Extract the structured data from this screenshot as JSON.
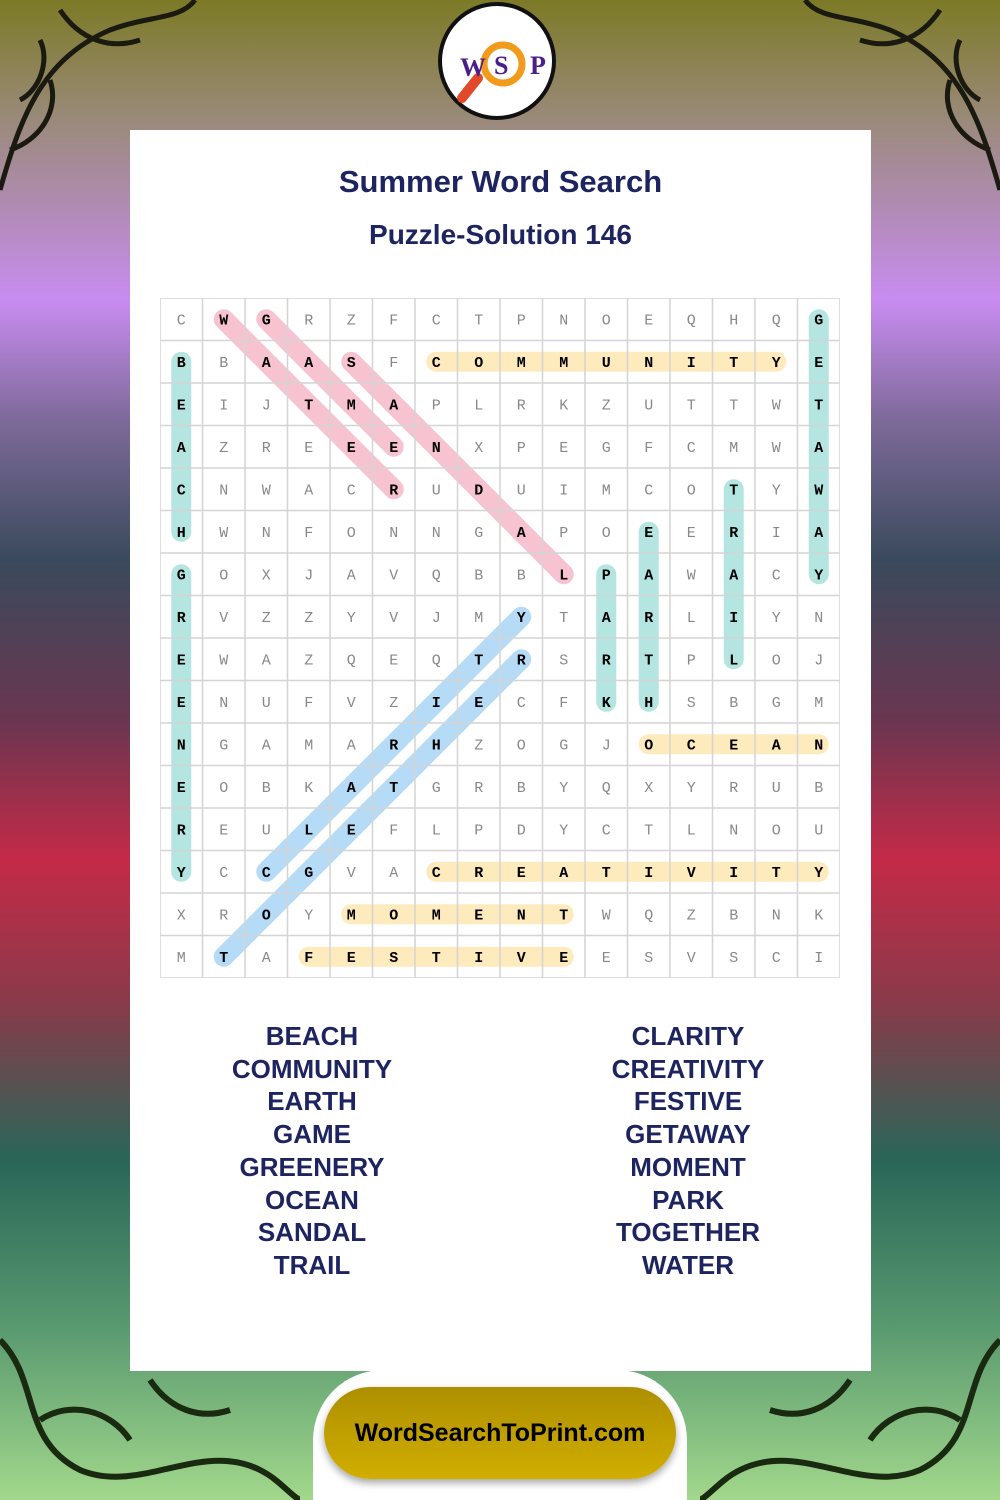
{
  "logo": {
    "letters": [
      "W",
      "S",
      "P"
    ],
    "icon": "magnifying-glass-icon"
  },
  "header": {
    "title": "Summer Word Search",
    "subtitle": "Puzzle-Solution 146"
  },
  "grid": [
    "CWGRZFCTPNOEQHQG",
    "BBAASFCOMMUNITYE",
    "EIJTMAPLRKZUTTWT",
    "AZREEENXPEGFCMWA",
    "CNWACRUDUIMCOTYW",
    "HWNFONNGAPOEERIA",
    "GOXJAVQBBLPAWACY",
    "RVZZYVJMYTARLIYN",
    "EWAZQEQTRSRTPLOJ",
    "ENUFVZIECFKHSBGM",
    "NGAMARHZOGJOCEAN",
    "EOBKATGRBYQXYRUB",
    "REULEFLPDYCTLNOU",
    "YCCGVACREATIVITY",
    "XROYMOMENTWQZBNK",
    "MTAFESTIVEESVSCI"
  ],
  "colors": {
    "pink": "#f7b9c9",
    "teal": "#a9e1dc",
    "yellow": "#fde7b2",
    "blue": "#a9d5f5",
    "title": "#1e2460",
    "button": "#c2a000"
  },
  "solutions": [
    {
      "word": "BEACH",
      "start": [
        1,
        0
      ],
      "end": [
        5,
        0
      ],
      "color": "teal"
    },
    {
      "word": "GREENERY",
      "start": [
        6,
        0
      ],
      "end": [
        13,
        0
      ],
      "color": "teal"
    },
    {
      "word": "GETAWAY",
      "start": [
        0,
        15
      ],
      "end": [
        6,
        15
      ],
      "color": "teal"
    },
    {
      "word": "TRAIL",
      "start": [
        4,
        13
      ],
      "end": [
        8,
        13
      ],
      "color": "teal"
    },
    {
      "word": "EARTH",
      "start": [
        5,
        11
      ],
      "end": [
        9,
        11
      ],
      "color": "teal"
    },
    {
      "word": "PARK",
      "start": [
        6,
        10
      ],
      "end": [
        9,
        10
      ],
      "color": "teal"
    },
    {
      "word": "COMMUNITY",
      "start": [
        1,
        6
      ],
      "end": [
        1,
        14
      ],
      "color": "yellow"
    },
    {
      "word": "OCEAN",
      "start": [
        10,
        11
      ],
      "end": [
        10,
        15
      ],
      "color": "yellow"
    },
    {
      "word": "CREATIVITY",
      "start": [
        13,
        6
      ],
      "end": [
        13,
        15
      ],
      "color": "yellow"
    },
    {
      "word": "MOMENT",
      "start": [
        14,
        4
      ],
      "end": [
        14,
        9
      ],
      "color": "yellow"
    },
    {
      "word": "FESTIVE",
      "start": [
        15,
        3
      ],
      "end": [
        15,
        9
      ],
      "color": "yellow"
    },
    {
      "word": "WATER",
      "start": [
        0,
        1
      ],
      "end": [
        4,
        5
      ],
      "color": "pink"
    },
    {
      "word": "GAME",
      "start": [
        0,
        2
      ],
      "end": [
        3,
        5
      ],
      "color": "pink"
    },
    {
      "word": "SANDAL",
      "start": [
        1,
        4
      ],
      "end": [
        6,
        9
      ],
      "color": "pink"
    },
    {
      "word": "TOGETHER",
      "start": [
        15,
        1
      ],
      "end": [
        8,
        8
      ],
      "color": "blue"
    },
    {
      "word": "CLARITY",
      "start": [
        13,
        2
      ],
      "end": [
        7,
        8
      ],
      "color": "blue"
    }
  ],
  "word_list": {
    "left": [
      "BEACH",
      "COMMUNITY",
      "EARTH",
      "GAME",
      "GREENERY",
      "OCEAN",
      "SANDAL",
      "TRAIL"
    ],
    "right": [
      "CLARITY",
      "CREATIVITY",
      "FESTIVE",
      "GETAWAY",
      "MOMENT",
      "PARK",
      "TOGETHER",
      "WATER"
    ]
  },
  "footer": {
    "site": "WordSearchToPrint.com"
  }
}
